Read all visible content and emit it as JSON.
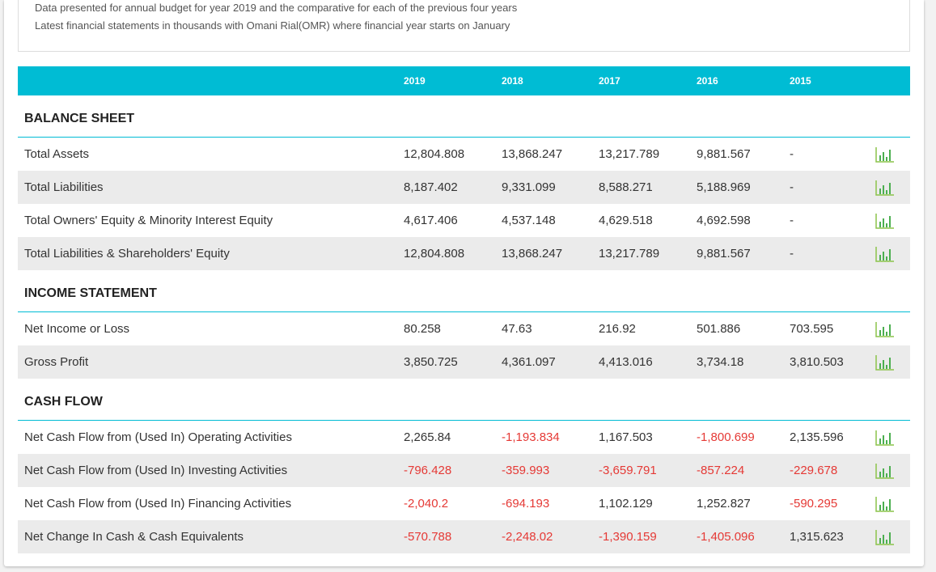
{
  "intro": [
    "Data presented for annual budget for year 2019 and the comparative for each of the previous four years",
    "Latest financial statements in thousands with Omani Rial(OMR) where financial year starts on January"
  ],
  "header": {
    "years": [
      "2019",
      "2018",
      "2017",
      "2016",
      "2015"
    ]
  },
  "sections": [
    {
      "title": "BALANCE SHEET",
      "rows": [
        {
          "label": "Total Assets",
          "values": [
            "12,804.808",
            "13,868.247",
            "13,217.789",
            "9,881.567",
            "-"
          ]
        },
        {
          "label": "Total Liabilities",
          "values": [
            "8,187.402",
            "9,331.099",
            "8,588.271",
            "5,188.969",
            "-"
          ]
        },
        {
          "label": "Total Owners' Equity & Minority Interest Equity",
          "values": [
            "4,617.406",
            "4,537.148",
            "4,629.518",
            "4,692.598",
            "-"
          ]
        },
        {
          "label": "Total Liabilities & Shareholders' Equity",
          "values": [
            "12,804.808",
            "13,868.247",
            "13,217.789",
            "9,881.567",
            "-"
          ]
        }
      ]
    },
    {
      "title": "INCOME STATEMENT",
      "rows": [
        {
          "label": "Net Income or Loss",
          "values": [
            "80.258",
            "47.63",
            "216.92",
            "501.886",
            "703.595"
          ]
        },
        {
          "label": "Gross Profit",
          "values": [
            "3,850.725",
            "4,361.097",
            "4,413.016",
            "3,734.18",
            "3,810.503"
          ]
        }
      ]
    },
    {
      "title": "CASH FLOW",
      "rows": [
        {
          "label": "Net Cash Flow from (Used In) Operating Activities",
          "values": [
            "2,265.84",
            "-1,193.834",
            "1,167.503",
            "-1,800.699",
            "2,135.596"
          ]
        },
        {
          "label": "Net Cash Flow from (Used In) Investing Activities",
          "values": [
            "-796.428",
            "-359.993",
            "-3,659.791",
            "-857.224",
            "-229.678"
          ]
        },
        {
          "label": "Net Cash Flow from (Used In) Financing Activities",
          "values": [
            "-2,040.2",
            "-694.193",
            "1,102.129",
            "1,252.827",
            "-590.295"
          ]
        },
        {
          "label": "Net Change In Cash & Cash Equivalents",
          "values": [
            "-570.788",
            "-2,248.02",
            "-1,390.159",
            "-1,405.096",
            "1,315.623"
          ]
        }
      ]
    }
  ]
}
